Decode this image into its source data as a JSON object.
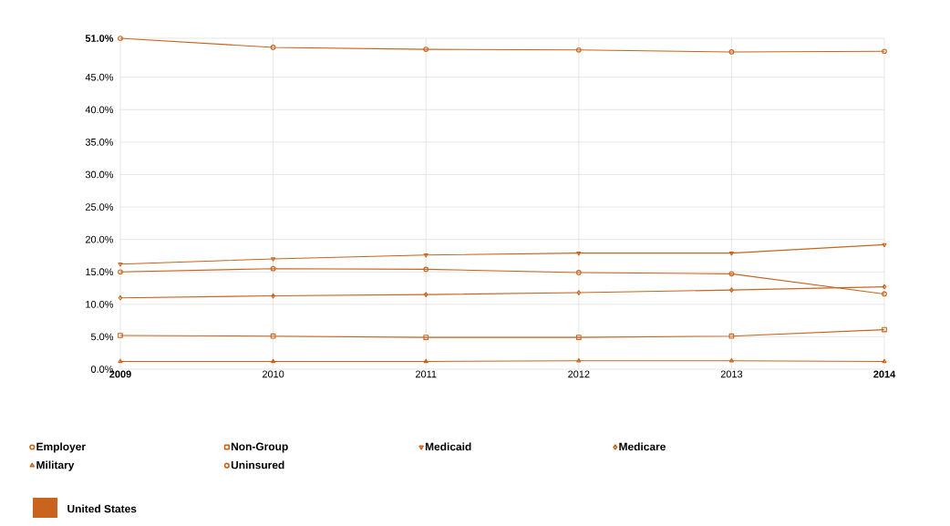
{
  "chart_data": {
    "type": "line",
    "x": [
      2009,
      2010,
      2011,
      2012,
      2013,
      2014
    ],
    "xlim": [
      2009,
      2014
    ],
    "xticks": [
      2009,
      2010,
      2011,
      2012,
      2013,
      2014
    ],
    "ylim": [
      0,
      51
    ],
    "yticks": [
      {
        "value": 0,
        "label": "0.0%"
      },
      {
        "value": 5,
        "label": "5.0%"
      },
      {
        "value": 10,
        "label": "10.0%"
      },
      {
        "value": 15,
        "label": "15.0%"
      },
      {
        "value": 20,
        "label": "20.0%"
      },
      {
        "value": 25,
        "label": "25.0%"
      },
      {
        "value": 30,
        "label": "30.0%"
      },
      {
        "value": 35,
        "label": "35.0%"
      },
      {
        "value": 40,
        "label": "40.0%"
      },
      {
        "value": 45,
        "label": "45.0%"
      },
      {
        "value": 51,
        "label": "51.0%"
      }
    ],
    "grid": true,
    "legend": "bottom",
    "line_style": "solid",
    "series": [
      {
        "name": "Employer",
        "color": "#c8641e",
        "marker": "circle",
        "values": [
          51.0,
          49.6,
          49.3,
          49.2,
          48.9,
          49.0
        ]
      },
      {
        "name": "Non-Group",
        "color": "#c8641e",
        "marker": "square",
        "values": [
          5.2,
          5.1,
          4.9,
          4.9,
          5.1,
          6.1
        ]
      },
      {
        "name": "Medicaid",
        "color": "#c8641e",
        "marker": "triangle-down",
        "values": [
          16.2,
          17.0,
          17.6,
          17.9,
          17.9,
          19.2
        ]
      },
      {
        "name": "Medicare",
        "color": "#c8641e",
        "marker": "diamond",
        "values": [
          11.0,
          11.3,
          11.5,
          11.8,
          12.2,
          12.7
        ]
      },
      {
        "name": "Military",
        "color": "#c8641e",
        "marker": "triangle",
        "values": [
          1.2,
          1.2,
          1.2,
          1.3,
          1.3,
          1.2
        ]
      },
      {
        "name": "Uninsured",
        "color": "#c8641e",
        "marker": "circle",
        "values": [
          15.0,
          15.5,
          15.4,
          14.9,
          14.7,
          11.6
        ]
      }
    ],
    "annotations": [
      "United States"
    ]
  }
}
